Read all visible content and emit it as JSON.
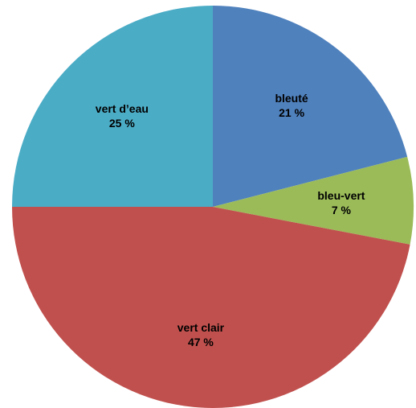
{
  "chart_data": {
    "type": "pie",
    "categories": [
      "bleuté",
      "bleu-vert",
      "vert clair",
      "vert d’eau"
    ],
    "values": [
      21,
      7,
      47,
      25
    ],
    "value_labels": [
      "21 %",
      "7 %",
      "47 %",
      "25 %"
    ],
    "colors": [
      "#4f81bd",
      "#9bbb59",
      "#c0504d",
      "#4bacc6"
    ]
  }
}
